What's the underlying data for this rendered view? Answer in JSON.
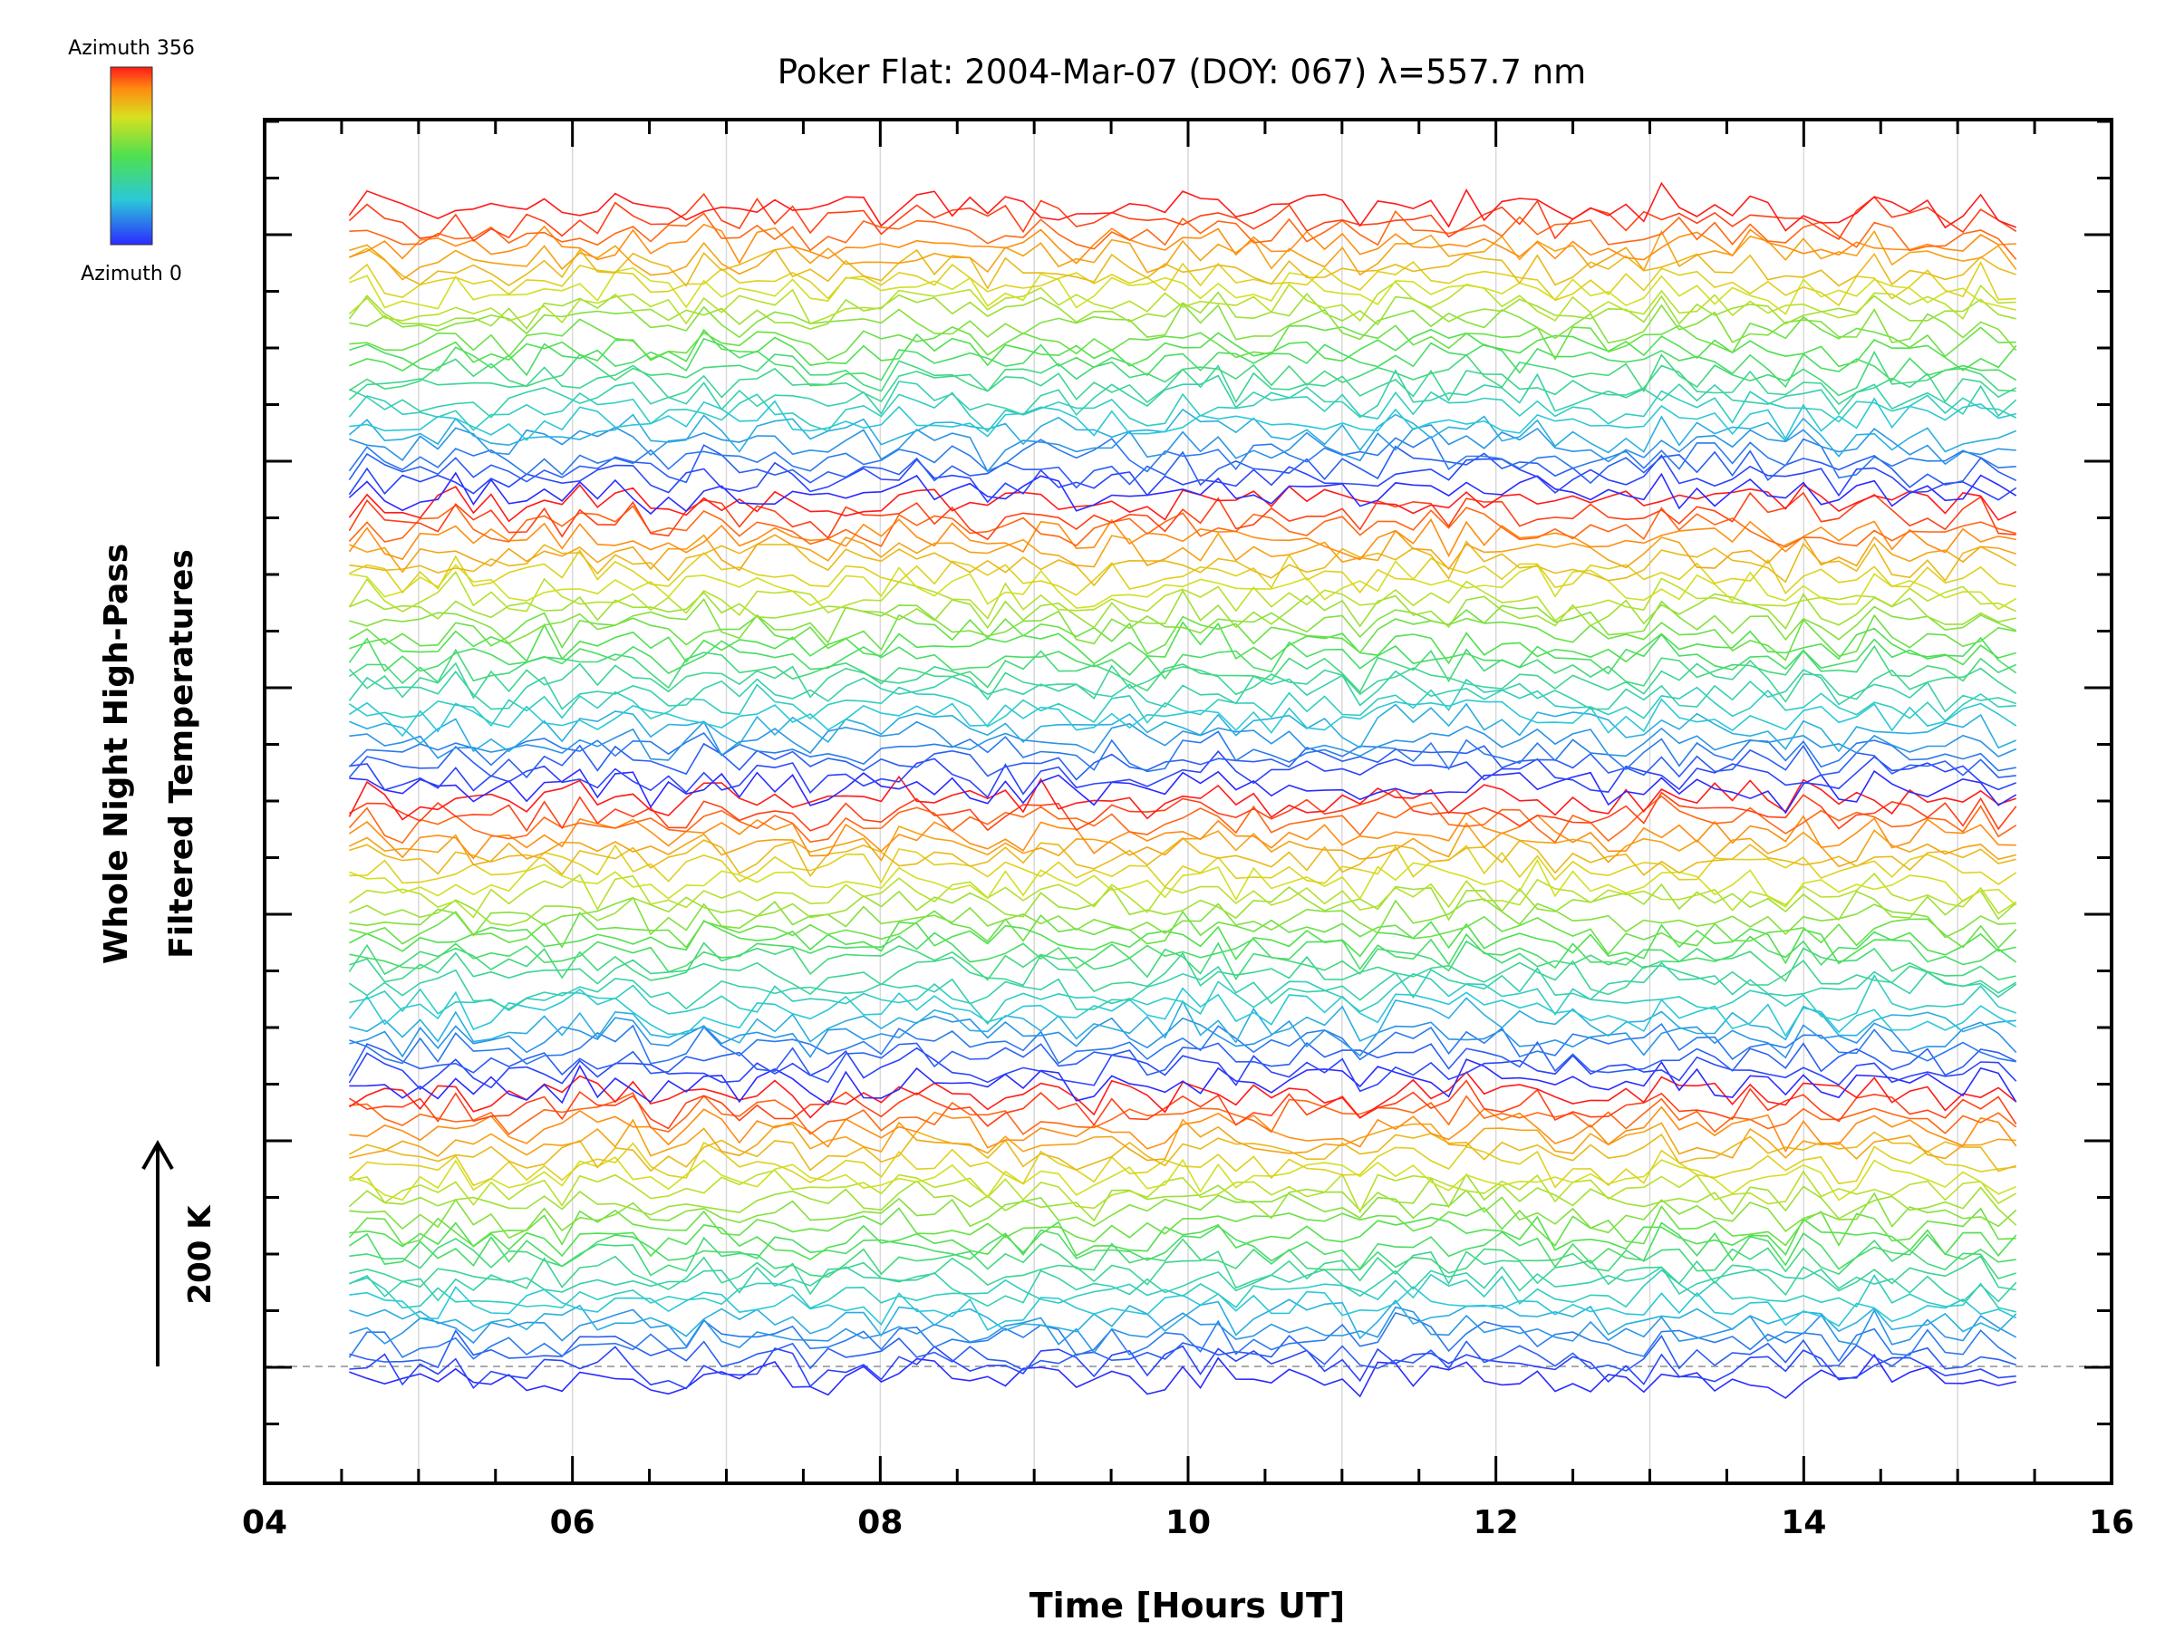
{
  "chart_data": {
    "type": "line",
    "title": "Poker Flat: 2004-Mar-07 (DOY: 067) λ=557.7 nm",
    "xlabel": "Time [Hours UT]",
    "ylabel_line1": "Whole Night High-Pass",
    "ylabel_line2": "Filtered Temperatures",
    "scale_label": "200 K",
    "xlim": [
      4,
      16
    ],
    "x_ticks": [
      "04",
      "06",
      "08",
      "10",
      "12",
      "14",
      "16"
    ],
    "x_range_data": [
      4.55,
      15.38
    ],
    "n_series": 100,
    "colorbar": {
      "top_label": "Azimuth  356",
      "bottom_label": "Azimuth  0",
      "min": 0,
      "max": 356
    },
    "grid": true
  }
}
